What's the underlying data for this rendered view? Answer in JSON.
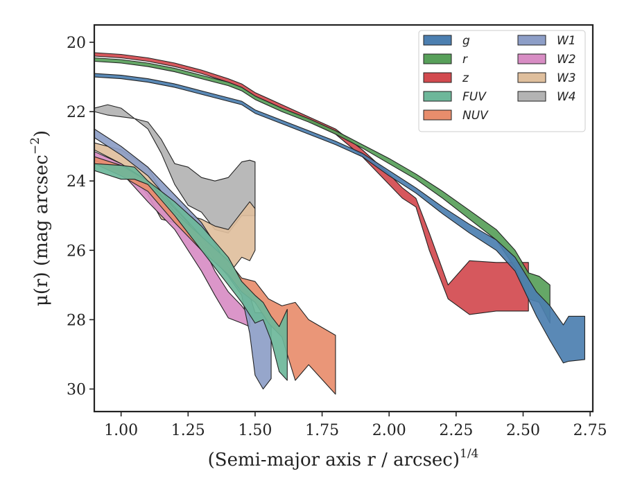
{
  "chart_data": {
    "type": "area",
    "xlabel": "(Semi-major axis r / arcsec)",
    "xlabel_exponent": "1/4",
    "ylabel": "μ(r) (mag arcsec",
    "ylabel_exponent": "−2",
    "ylabel_close": ")",
    "xlim": [
      0.9,
      2.76
    ],
    "ylim": [
      30.65,
      19.5
    ],
    "y_inverted": true,
    "grid": false,
    "legend_position": "top-right",
    "x_ticks": [
      1.0,
      1.25,
      1.5,
      1.75,
      2.0,
      2.25,
      2.5,
      2.75
    ],
    "x_tick_labels": [
      "1.00",
      "1.25",
      "1.50",
      "1.75",
      "2.00",
      "2.25",
      "2.50",
      "2.75"
    ],
    "y_ticks": [
      20,
      22,
      24,
      26,
      28,
      30
    ],
    "y_tick_labels": [
      "20",
      "22",
      "24",
      "26",
      "28",
      "30"
    ],
    "series": [
      {
        "name": "g",
        "color": "#4c7fb0",
        "x": [
          0.9,
          1.0,
          1.1,
          1.2,
          1.3,
          1.4,
          1.45,
          1.5,
          1.6,
          1.7,
          1.8,
          1.9,
          2.0,
          2.1,
          2.2,
          2.3,
          2.4,
          2.47,
          2.55,
          2.6,
          2.65,
          2.67,
          2.73
        ],
        "lower": [
          20.9,
          20.95,
          21.05,
          21.2,
          21.4,
          21.6,
          21.7,
          21.95,
          22.25,
          22.55,
          22.85,
          23.2,
          23.7,
          24.2,
          24.75,
          25.25,
          25.7,
          26.2,
          27.2,
          27.6,
          28.15,
          27.9,
          27.9
        ],
        "upper": [
          21.0,
          21.05,
          21.15,
          21.3,
          21.5,
          21.7,
          21.8,
          22.05,
          22.35,
          22.65,
          22.95,
          23.3,
          23.85,
          24.35,
          24.95,
          25.5,
          26.0,
          26.6,
          27.9,
          28.6,
          29.25,
          29.2,
          29.15
        ]
      },
      {
        "name": "r",
        "color": "#58a05a",
        "x": [
          0.9,
          1.0,
          1.1,
          1.2,
          1.3,
          1.4,
          1.45,
          1.5,
          1.6,
          1.7,
          1.8,
          1.9,
          2.0,
          2.1,
          2.2,
          2.3,
          2.4,
          2.47,
          2.52,
          2.56,
          2.6
        ],
        "lower": [
          20.45,
          20.5,
          20.6,
          20.75,
          20.95,
          21.15,
          21.3,
          21.55,
          21.9,
          22.2,
          22.55,
          22.95,
          23.35,
          23.8,
          24.3,
          24.85,
          25.4,
          26.0,
          26.65,
          26.75,
          27.0
        ],
        "upper": [
          20.55,
          20.6,
          20.7,
          20.85,
          21.05,
          21.25,
          21.4,
          21.65,
          22.0,
          22.3,
          22.65,
          23.05,
          23.5,
          23.95,
          24.5,
          25.1,
          25.7,
          26.5,
          27.4,
          27.5,
          28.1
        ]
      },
      {
        "name": "z",
        "color": "#d24a4f",
        "x": [
          0.9,
          1.0,
          1.1,
          1.2,
          1.3,
          1.4,
          1.45,
          1.5,
          1.6,
          1.7,
          1.8,
          1.9,
          2.0,
          2.05,
          2.1,
          2.15,
          2.22,
          2.3,
          2.4,
          2.52
        ],
        "lower": [
          20.3,
          20.35,
          20.45,
          20.6,
          20.8,
          21.05,
          21.2,
          21.45,
          21.8,
          22.15,
          22.5,
          23.1,
          23.8,
          24.2,
          24.5,
          25.5,
          27.0,
          26.3,
          26.35,
          26.35
        ],
        "upper": [
          20.4,
          20.45,
          20.55,
          20.7,
          20.9,
          21.15,
          21.3,
          21.55,
          21.9,
          22.25,
          22.65,
          23.3,
          24.1,
          24.5,
          24.75,
          26.0,
          27.4,
          27.85,
          27.75,
          27.75
        ]
      },
      {
        "name": "FUV",
        "color": "#6db79a",
        "x": [
          0.9,
          1.0,
          1.05,
          1.1,
          1.2,
          1.3,
          1.4,
          1.45,
          1.5,
          1.53,
          1.56,
          1.59,
          1.62
        ],
        "lower": [
          23.5,
          23.55,
          23.6,
          24.0,
          24.6,
          25.3,
          26.2,
          26.9,
          27.3,
          27.5,
          27.9,
          28.2,
          27.7
        ],
        "upper": [
          23.7,
          23.95,
          23.95,
          24.1,
          25.0,
          26.0,
          27.0,
          27.5,
          28.1,
          28.0,
          28.6,
          29.5,
          29.75
        ]
      },
      {
        "name": "NUV",
        "color": "#e88d6c",
        "x": [
          0.9,
          1.0,
          1.1,
          1.2,
          1.3,
          1.4,
          1.45,
          1.5,
          1.55,
          1.6,
          1.65,
          1.7,
          1.8
        ],
        "lower": [
          23.3,
          23.55,
          24.0,
          24.9,
          25.6,
          26.3,
          26.8,
          26.9,
          27.4,
          27.6,
          27.5,
          28.0,
          28.45
        ],
        "upper": [
          23.5,
          23.85,
          24.3,
          25.2,
          26.0,
          26.7,
          27.2,
          27.5,
          28.1,
          28.5,
          29.75,
          29.3,
          30.15
        ]
      },
      {
        "name": "W1",
        "color": "#8d9ec7",
        "x": [
          0.9,
          1.0,
          1.1,
          1.2,
          1.3,
          1.35,
          1.4,
          1.45,
          1.48,
          1.5,
          1.53,
          1.56
        ],
        "lower": [
          22.5,
          23.0,
          23.6,
          24.4,
          25.2,
          25.8,
          26.5,
          26.9,
          27.3,
          27.8,
          27.8,
          28.2
        ],
        "upper": [
          22.75,
          23.25,
          23.85,
          24.75,
          25.6,
          26.3,
          26.75,
          27.3,
          28.4,
          29.6,
          30.0,
          29.7
        ]
      },
      {
        "name": "W2",
        "color": "#d88dc4",
        "x": [
          0.9,
          1.0,
          1.1,
          1.2,
          1.25,
          1.3,
          1.35,
          1.4,
          1.45,
          1.48
        ],
        "lower": [
          23.15,
          23.5,
          24.0,
          24.8,
          25.2,
          25.8,
          26.6,
          27.2,
          27.6,
          27.9
        ],
        "upper": [
          23.4,
          23.75,
          24.6,
          25.4,
          26.0,
          26.6,
          27.3,
          27.95,
          28.1,
          28.2
        ]
      },
      {
        "name": "W3",
        "color": "#dfbf9d",
        "x": [
          0.9,
          1.0,
          1.1,
          1.15,
          1.2,
          1.25,
          1.3,
          1.35,
          1.4,
          1.45,
          1.48,
          1.5
        ],
        "lower": [
          22.9,
          23.1,
          23.6,
          24.3,
          24.8,
          25.0,
          25.1,
          25.3,
          25.4,
          24.9,
          24.6,
          24.8
        ],
        "upper": [
          23.1,
          23.5,
          24.4,
          25.1,
          25.2,
          25.6,
          25.8,
          26.2,
          26.7,
          26.2,
          26.3,
          26.0
        ]
      },
      {
        "name": "W4",
        "color": "#b3b3b3",
        "x": [
          0.9,
          0.95,
          1.0,
          1.05,
          1.1,
          1.15,
          1.2,
          1.25,
          1.3,
          1.35,
          1.4,
          1.45,
          1.48,
          1.5
        ],
        "lower": [
          21.9,
          21.8,
          21.9,
          22.2,
          22.3,
          22.8,
          23.5,
          23.6,
          23.9,
          24.0,
          23.9,
          23.45,
          23.4,
          23.45
        ],
        "upper": [
          22.0,
          22.1,
          22.15,
          22.2,
          22.5,
          23.2,
          24.1,
          24.7,
          24.9,
          25.4,
          25.5,
          25.0,
          25.0,
          25.0
        ]
      }
    ],
    "legend_columns": [
      [
        "g",
        "r",
        "z",
        "FUV",
        "NUV"
      ],
      [
        "W1",
        "W2",
        "W3",
        "W4"
      ]
    ]
  }
}
